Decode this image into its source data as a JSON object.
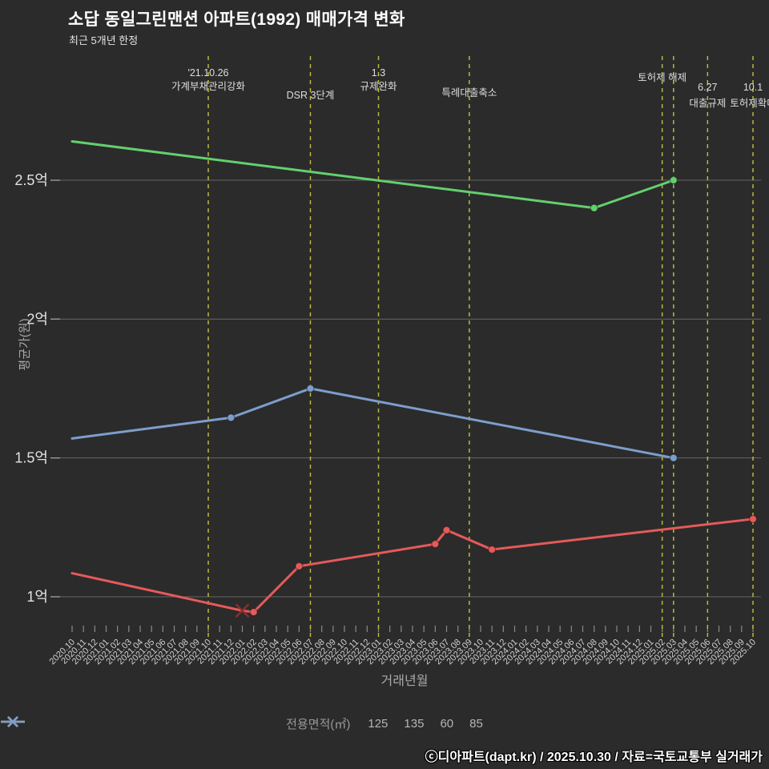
{
  "footer": {
    "text": "ⓒ디아파트(dapt.kr) / 2025.10.30 / 자료=국토교통부 실거래가"
  },
  "colors": {
    "background": "#2b2b2b",
    "annotation_dash": "#b9b93a",
    "grid": "#8a8a8a",
    "tick_label": "#d0d0d0",
    "annotation_text": "#dddddd"
  },
  "chart_data": {
    "type": "line",
    "title": "소답 동일그린맨션 아파트(1992) 매매가격 변화",
    "subtitle": "최근 5개년 한정",
    "xlabel": "거래년월",
    "ylabel": "평균가(원)",
    "y_unit": "억",
    "ylim": [
      0.8,
      2.85
    ],
    "grid": "horizontal",
    "y_ticks": [
      {
        "value": 1.0,
        "label": "1억"
      },
      {
        "value": 1.5,
        "label": "1.5억"
      },
      {
        "value": 2.0,
        "label": "2억"
      },
      {
        "value": 2.5,
        "label": "2.5억"
      }
    ],
    "x_categories": [
      "2020.10",
      "2020.11",
      "2020.12",
      "2021.01",
      "2021.02",
      "2021.03",
      "2021.04",
      "2021.05",
      "2021.06",
      "2021.07",
      "2021.08",
      "2021.09",
      "2021.10",
      "2021.11",
      "2021.12",
      "2022.01",
      "2022.02",
      "2022.03",
      "2022.04",
      "2022.05",
      "2022.06",
      "2022.07",
      "2022.08",
      "2022.09",
      "2022.10",
      "2022.11",
      "2022.12",
      "2023.01",
      "2023.02",
      "2023.03",
      "2023.04",
      "2023.05",
      "2023.06",
      "2023.07",
      "2023.08",
      "2023.09",
      "2023.10",
      "2023.11",
      "2023.12",
      "2024.01",
      "2024.02",
      "2024.03",
      "2024.04",
      "2024.05",
      "2024.06",
      "2024.07",
      "2024.08",
      "2024.09",
      "2024.10",
      "2024.11",
      "2024.12",
      "2025.01",
      "2025.02",
      "2025.03",
      "2025.04",
      "2025.05",
      "2025.06",
      "2025.07",
      "2025.08",
      "2025.09",
      "2025.10"
    ],
    "legend": {
      "label": "전용면적(㎡)",
      "position": "bottom",
      "items": [
        {
          "name": "125",
          "color": "#2f9e9e"
        },
        {
          "name": "135",
          "color": "#63d06e"
        },
        {
          "name": "60",
          "color": "#e55a5a"
        },
        {
          "name": "85",
          "color": "#7d9ecb"
        }
      ]
    },
    "series": [
      {
        "name": "125",
        "color": "#2f9e9e",
        "points": []
      },
      {
        "name": "135",
        "color": "#63d06e",
        "points": [
          {
            "x": "2020.10",
            "y": 2.64
          },
          {
            "x": "2024.08",
            "y": 2.4,
            "marker": "circle"
          },
          {
            "x": "2025.03",
            "y": 2.5,
            "marker": "circle"
          }
        ]
      },
      {
        "name": "60",
        "color": "#e55a5a",
        "points": [
          {
            "x": "2020.10",
            "y": 1.085
          },
          {
            "x": "2022.01",
            "y": 0.95,
            "marker": "x"
          },
          {
            "x": "2022.02",
            "y": 0.945,
            "marker": "circle"
          },
          {
            "x": "2022.06",
            "y": 1.11,
            "marker": "circle"
          },
          {
            "x": "2023.06",
            "y": 1.19,
            "marker": "circle"
          },
          {
            "x": "2023.07",
            "y": 1.24,
            "marker": "circle"
          },
          {
            "x": "2023.11",
            "y": 1.17,
            "marker": "circle"
          },
          {
            "x": "2025.10",
            "y": 1.28,
            "marker": "circle"
          }
        ]
      },
      {
        "name": "85",
        "color": "#7d9ecb",
        "points": [
          {
            "x": "2020.10",
            "y": 1.57
          },
          {
            "x": "2021.12",
            "y": 1.645,
            "marker": "circle"
          },
          {
            "x": "2022.07",
            "y": 1.75,
            "marker": "circle"
          },
          {
            "x": "2025.03",
            "y": 1.5,
            "marker": "circle"
          }
        ]
      }
    ],
    "annotations": [
      {
        "month": "2021.10",
        "lines": [
          "'21.10.26",
          "가계부채관리강화"
        ],
        "label_ys": [
          95,
          112
        ]
      },
      {
        "month": "2022.07",
        "lines": [
          "DSR 3단계"
        ],
        "label_ys": [
          123
        ]
      },
      {
        "month": "2023.01",
        "lines": [
          "1.3",
          "규제완화"
        ],
        "label_ys": [
          95,
          112
        ]
      },
      {
        "month": "2023.09",
        "lines": [
          "특례대출축소"
        ],
        "label_ys": [
          120
        ]
      },
      {
        "month": "2025.02",
        "lines": [
          "토허제 해제"
        ],
        "label_ys": [
          101
        ]
      },
      {
        "month": "2025.03",
        "lines": [],
        "label_ys": []
      },
      {
        "month": "2025.06",
        "lines": [
          "6.27",
          "대출규제"
        ],
        "label_ys": [
          113,
          133
        ]
      },
      {
        "month": "2025.10",
        "lines": [
          "10.1",
          "토허제확대"
        ],
        "label_ys": [
          113,
          133
        ]
      }
    ]
  }
}
